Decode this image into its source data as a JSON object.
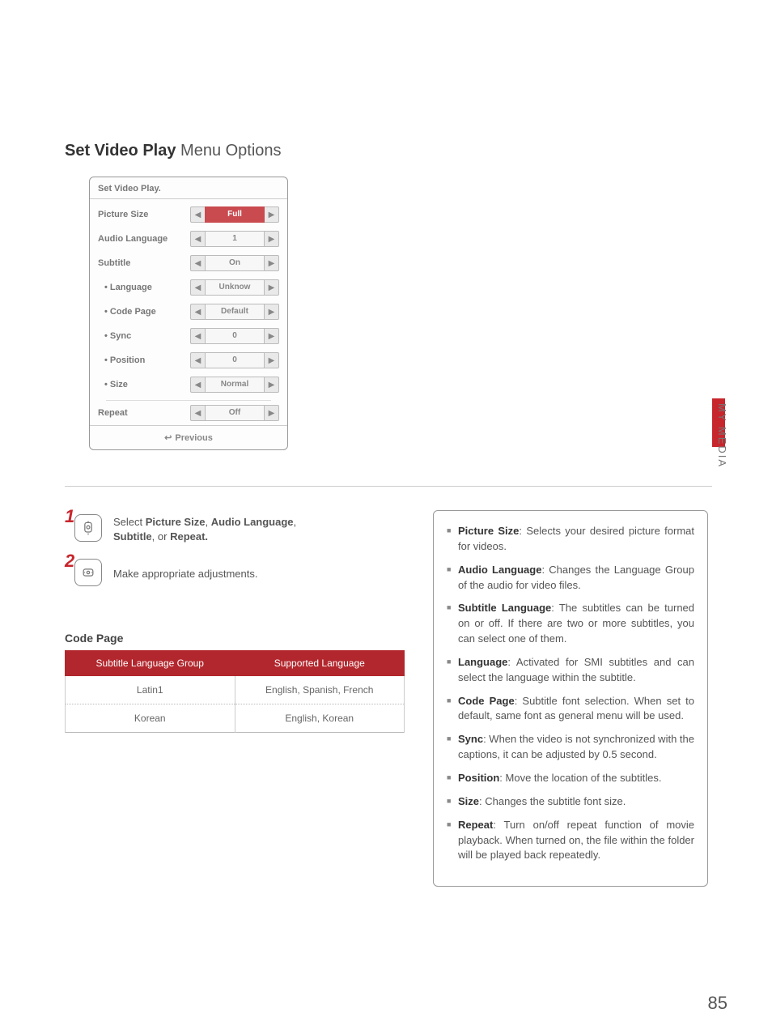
{
  "page": {
    "title_bold": "Set Video Play",
    "title_rest": " Menu Options",
    "side_label": "MY MEDIA",
    "page_number": "85"
  },
  "osd": {
    "panel_title": "Set Video Play.",
    "rows": [
      {
        "label": "Picture Size",
        "value": "Full",
        "active": true,
        "indent": false
      },
      {
        "label": "Audio Language",
        "value": "1",
        "active": false,
        "indent": false
      },
      {
        "label": "Subtitle",
        "value": "On",
        "active": false,
        "indent": false
      },
      {
        "label": "• Language",
        "value": "Unknow",
        "active": false,
        "indent": true
      },
      {
        "label": "• Code Page",
        "value": "Default",
        "active": false,
        "indent": true
      },
      {
        "label": "• Sync",
        "value": "0",
        "active": false,
        "indent": true
      },
      {
        "label": "• Position",
        "value": "0",
        "active": false,
        "indent": true
      },
      {
        "label": "• Size",
        "value": "Normal",
        "active": false,
        "indent": true
      },
      {
        "label": "Repeat",
        "value": "Off",
        "active": false,
        "indent": false,
        "divider_before": true
      }
    ],
    "footer_icon": "↩",
    "footer_text": "Previous"
  },
  "steps": {
    "s1_num": "1",
    "s1_text_a": "Select ",
    "s1_b1": "Picture Size",
    "s1_sep1": ", ",
    "s1_b2": "Audio Language",
    "s1_sep2": ", ",
    "s1_b3": "Subtitle",
    "s1_sep3": ", or ",
    "s1_b4": "Repeat.",
    "s2_num": "2",
    "s2_text": "Make appropriate adjustments."
  },
  "code_page": {
    "heading": "Code Page",
    "col1": "Subtitle Language Group",
    "col2": "Supported Language",
    "rows": [
      {
        "group": "Latin1",
        "langs": "English, Spanish, French"
      },
      {
        "group": "Korean",
        "langs": "English, Korean"
      }
    ]
  },
  "info": {
    "items": [
      {
        "term": "Picture Size",
        "desc": ": Selects your desired picture format for videos."
      },
      {
        "term": "Audio Language",
        "desc": ": Changes the Language Group of the audio for video files."
      },
      {
        "term": "Subtitle Language",
        "desc": ": The subtitles can be turned on or off. If there are two or more subtitles, you can select one of them."
      },
      {
        "term": "Language",
        "desc": ": Activated for SMI subtitles and can select the language within the subtitle."
      },
      {
        "term": "Code Page",
        "desc": ": Subtitle font selection. When set to default, same font as general menu will be used."
      },
      {
        "term": "Sync",
        "desc": ": When the video is not synchronized with the captions, it can be adjusted by 0.5 second."
      },
      {
        "term": "Position",
        "desc": ": Move the location of the subtitles."
      },
      {
        "term": "Size",
        "desc": ": Changes the subtitle font size."
      },
      {
        "term": "Repeat",
        "desc": ": Turn on/off repeat function of movie playback. When turned on, the file within the folder will be played back repeatedly."
      }
    ]
  },
  "colors": {
    "lg_red": "#c8262d",
    "osd_red": "#c94a4f",
    "table_red": "#b2272d"
  }
}
